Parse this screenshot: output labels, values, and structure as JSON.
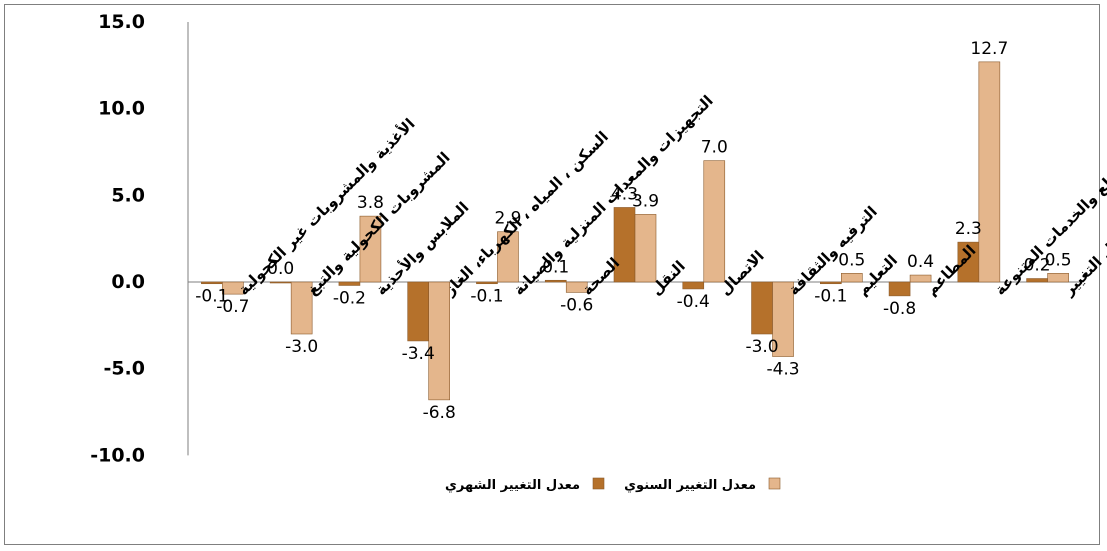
{
  "chart_data": {
    "type": "bar",
    "categories": [
      "الأغذية والمشروبات غير الكحولية",
      "المشروبات الكحولية والتبغ",
      "الملابس والأحذية",
      "السكن ، المياه ، الكهرباء، الغاز",
      "التجهيزات والمعدات المنزلية والصيانة",
      "الصحة",
      "النقل",
      "الاتصال",
      "الترفيه والثقافة",
      "التعليم",
      "المطاعم",
      "السلع والخدمات المتنوعة",
      "معدل التغيير"
    ],
    "series": [
      {
        "name": "معدل التغيير الشهري",
        "color": "#b5712b",
        "values": [
          -0.1,
          0.0,
          -0.2,
          -3.4,
          -0.1,
          0.1,
          4.3,
          -0.4,
          -3.0,
          -0.1,
          -0.8,
          2.3,
          0.2
        ],
        "labels": [
          "-0.1",
          "0.0",
          "-0.2",
          "-3.4",
          "-0.1",
          "0.1",
          "4.3",
          "-0.4",
          "-3.0",
          "-0.1",
          "-0.8",
          "2.3",
          "0.2"
        ]
      },
      {
        "name": "معدل التغيير السنوي",
        "color": "#e4b68c",
        "values": [
          -0.7,
          -3.0,
          3.8,
          -6.8,
          2.9,
          -0.6,
          3.9,
          7.0,
          -4.3,
          0.5,
          0.4,
          12.7,
          0.5
        ],
        "labels": [
          "-0.7",
          "-3.0",
          "3.8",
          "-6.8",
          "2.9",
          "-0.6",
          "3.9",
          "7.0",
          "-4.3",
          "0.5",
          "0.4",
          "12.7",
          "0.5"
        ]
      }
    ],
    "yticks": [
      "15.0",
      "10.0",
      "5.0",
      "0.0",
      "-5.0",
      "-10.0"
    ],
    "ylim": [
      -10,
      15
    ],
    "grid": false,
    "legend_position": "bottom-center"
  }
}
